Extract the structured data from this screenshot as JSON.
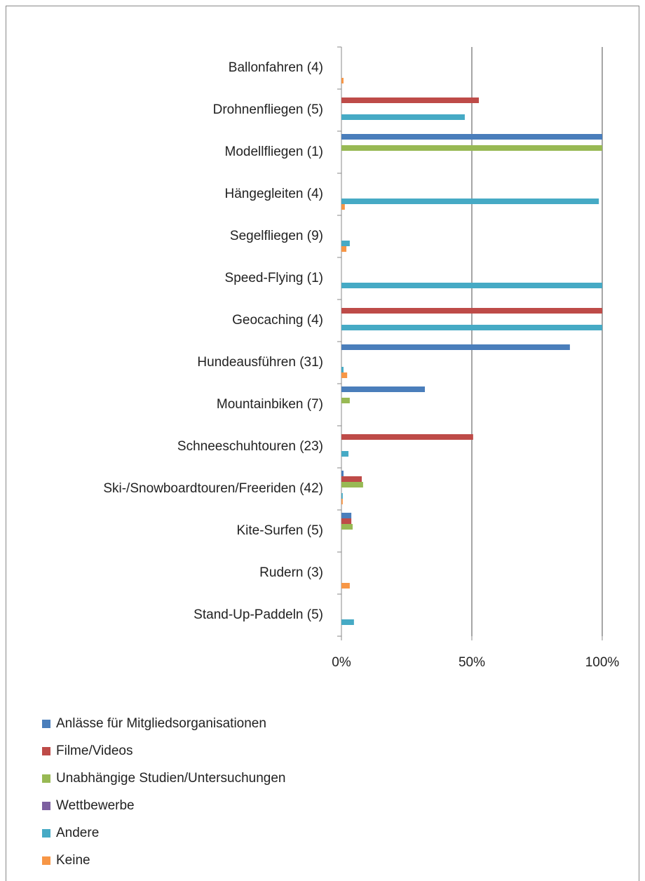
{
  "chart_data": {
    "type": "hbar",
    "categories": [
      "Ballonfahren (4)",
      "Drohnenfliegen (5)",
      "Modellfliegen (1)",
      "Hängegleiten (4)",
      "Segelfliegen (9)",
      "Speed-Flying (1)",
      "Geocaching (4)",
      "Hundeausführen (31)",
      "Mountainbiken (7)",
      "Schneeschuhtouren (23)",
      "Ski-/Snowboardtouren/Freeriden (42)",
      "Kite-Surfen (5)",
      "Rudern (3)",
      "Stand-Up-Paddeln (5)"
    ],
    "series": [
      {
        "name": "Anlässe für Mitgliedsorganisationen",
        "color": "#4a7ebb",
        "values": [
          0,
          0,
          100,
          0,
          0,
          0,
          0,
          87.6,
          32,
          0,
          0.8,
          3.8,
          0,
          0
        ]
      },
      {
        "name": "Filme/Videos",
        "color": "#be4b48",
        "values": [
          0,
          52.7,
          0,
          0,
          0,
          0,
          100,
          0,
          0,
          50.5,
          7.8,
          3.8,
          0,
          0
        ]
      },
      {
        "name": "Unabhängige Studien/Untersuchungen",
        "color": "#98b954",
        "values": [
          0,
          0,
          100,
          0,
          0,
          0,
          0,
          0,
          3.2,
          0,
          8.3,
          4.3,
          0,
          0
        ]
      },
      {
        "name": "Wettbewerbe",
        "color": "#7d60a0",
        "values": [
          0,
          0,
          0,
          0,
          0,
          0,
          0,
          0,
          0,
          0,
          0,
          0,
          0,
          0
        ]
      },
      {
        "name": "Andere",
        "color": "#46aac5",
        "values": [
          0,
          47.3,
          0,
          98.7,
          3.2,
          100,
          100,
          0.8,
          0,
          2.7,
          0.5,
          0,
          0,
          4.8
        ]
      },
      {
        "name": "Keine",
        "color": "#f79646",
        "values": [
          0.8,
          0,
          0,
          1.3,
          1.9,
          0,
          0,
          2.2,
          0,
          0,
          0.5,
          0,
          3.2,
          0
        ]
      }
    ],
    "xlim": [
      0,
      100
    ],
    "xticks": [
      {
        "value": 0,
        "label": "0%"
      },
      {
        "value": 50,
        "label": "50%"
      },
      {
        "value": 100,
        "label": "100%"
      }
    ],
    "grid": true,
    "legend": "bottom"
  }
}
